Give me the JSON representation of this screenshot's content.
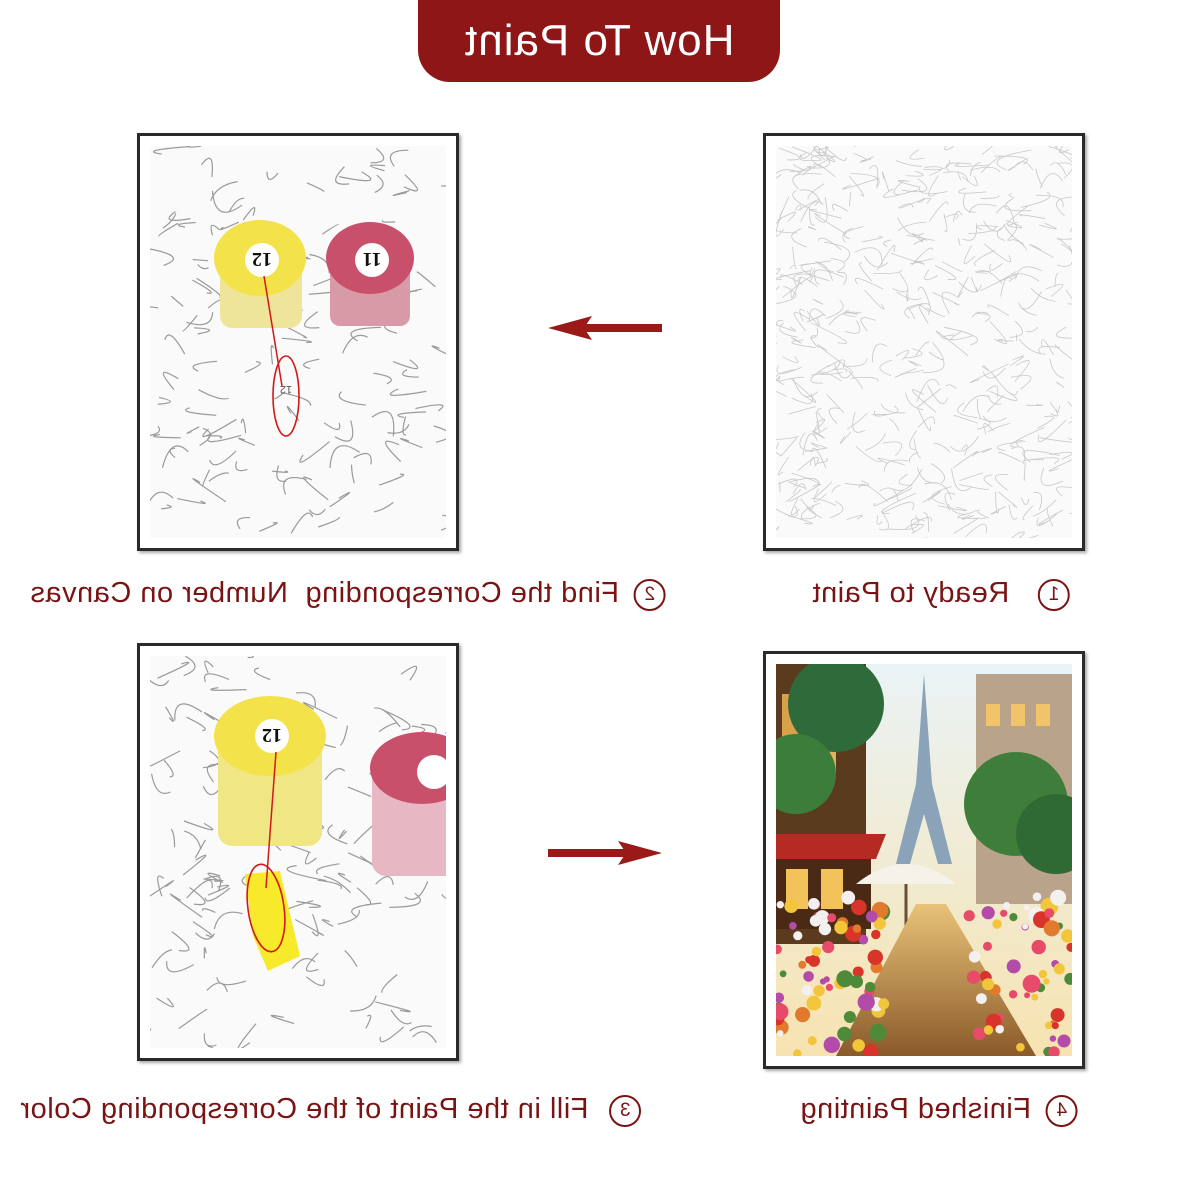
{
  "header": {
    "title": "How To Paint"
  },
  "steps": [
    {
      "number": "1",
      "label": "Ready to Paint"
    },
    {
      "number": "2",
      "label": "Find the Corresponding  Number on Canvas"
    },
    {
      "number": "3",
      "label": "Fill in the Paint of the Corresponding Color"
    },
    {
      "number": "4",
      "label": "Finished Painting"
    }
  ],
  "paint_pots": {
    "yellow_label": "12",
    "pink_label": "11",
    "canvas_number": "12"
  },
  "colors": {
    "banner": "#8e1616",
    "caption": "#7a1414",
    "arrow": "#9a1a1a",
    "yellow_paint": "#f4e24a",
    "pink_paint": "#c9506b"
  }
}
